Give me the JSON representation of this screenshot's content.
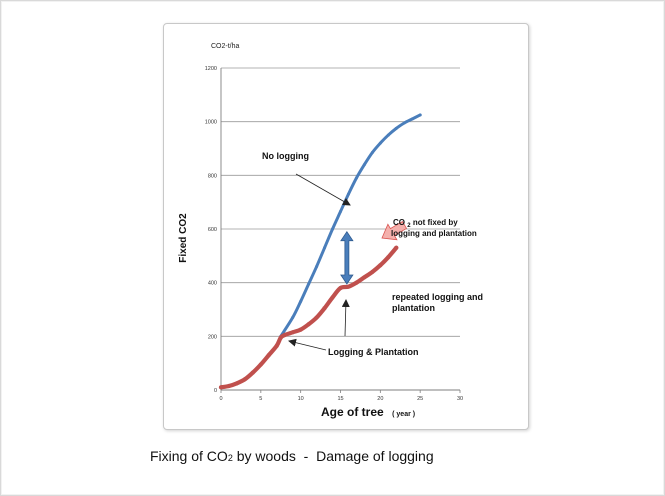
{
  "chart_data": {
    "type": "line",
    "unit_label": "CO2-t/ha",
    "ylabel": "Fixed CO2",
    "xlabel": "Age of tree",
    "xlabel_unit": "( year )",
    "xlim": [
      0,
      30
    ],
    "ylim": [
      0,
      1200
    ],
    "x_ticks": [
      0,
      5,
      10,
      15,
      20,
      25,
      30
    ],
    "y_ticks": [
      0,
      200,
      400,
      600,
      800,
      1000,
      1200
    ],
    "grid": "horizontal",
    "series": [
      {
        "id": "no-logging",
        "color": "#4a7ebb",
        "points": [
          [
            7.5,
            200
          ],
          [
            9,
            270
          ],
          [
            10,
            330
          ],
          [
            11,
            395
          ],
          [
            12,
            460
          ],
          [
            13,
            530
          ],
          [
            14,
            600
          ],
          [
            15,
            665
          ],
          [
            16,
            730
          ],
          [
            17,
            790
          ],
          [
            18,
            840
          ],
          [
            19,
            885
          ],
          [
            20,
            920
          ],
          [
            21,
            950
          ],
          [
            22,
            975
          ],
          [
            23,
            995
          ],
          [
            24,
            1010
          ],
          [
            25,
            1025
          ]
        ]
      },
      {
        "id": "logging-plantation",
        "color": "#c0504d",
        "points": [
          [
            0,
            10
          ],
          [
            1,
            15
          ],
          [
            2,
            25
          ],
          [
            3,
            40
          ],
          [
            4,
            65
          ],
          [
            5,
            95
          ],
          [
            6,
            130
          ],
          [
            7,
            165
          ],
          [
            7.5,
            195
          ],
          [
            8,
            205
          ],
          [
            9,
            215
          ],
          [
            10,
            225
          ],
          [
            11,
            245
          ],
          [
            12,
            270
          ],
          [
            13,
            305
          ],
          [
            14,
            345
          ],
          [
            15,
            380
          ],
          [
            16,
            385
          ],
          [
            17,
            400
          ],
          [
            18,
            420
          ],
          [
            19,
            440
          ],
          [
            20,
            465
          ],
          [
            21,
            495
          ],
          [
            22,
            530
          ]
        ]
      }
    ],
    "annotations": {
      "no_logging": "No logging",
      "co2_not_fixed_line1": "CO",
      "co2_not_fixed_sub": "2",
      "co2_not_fixed_line1_rest": "  not fixed by",
      "co2_not_fixed_line2": "logging and plantation",
      "repeated_line1": "repeated  logging and",
      "repeated_line2": "plantation",
      "logging_plantation": "Logging & Plantation"
    },
    "colors": {
      "gap_arrow": "#4a7ebb",
      "pointer_arrow_fill": "#f4b0ac",
      "pointer_arrow_stroke": "#d9534f"
    }
  },
  "caption": {
    "prefix": "Fixing of CO",
    "sub": "2",
    "suffix": " by woods  -  Damage of logging"
  }
}
